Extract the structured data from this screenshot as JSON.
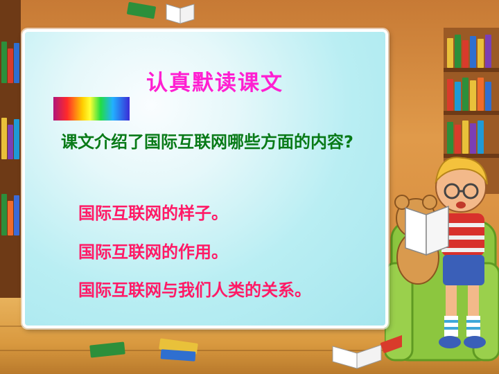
{
  "slide": {
    "title": "认真默读课文",
    "question": "课文介绍了国际互联网哪些方面的内容?",
    "answers": [
      "国际互联网的样子。",
      "国际互联网的作用。",
      "国际互联网与我们人类的关系。"
    ]
  },
  "colors": {
    "title": "#ff1fd1",
    "question": "#087a17",
    "answers": "#ff1a66",
    "board_background": "#b9eef3"
  },
  "decorations": {
    "rainbow_bar": "rainbow-gradient-bar",
    "illustration": "reading-child-illustration"
  }
}
